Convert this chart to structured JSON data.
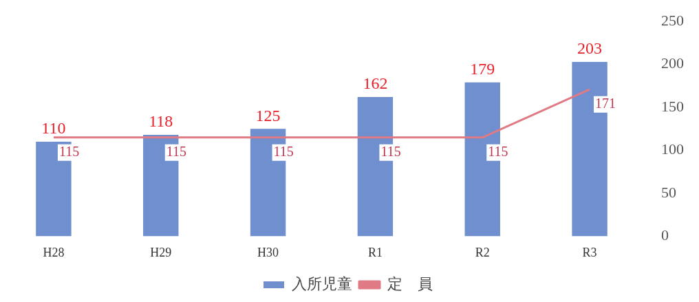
{
  "chart_data": {
    "type": "bar",
    "categories": [
      "H28",
      "H29",
      "H30",
      "R1",
      "R2",
      "R3"
    ],
    "series": [
      {
        "name": "入所児童",
        "color": "#6f8fcf",
        "values": [
          110,
          118,
          125,
          162,
          179,
          203
        ]
      },
      {
        "name": "定　員",
        "type": "line",
        "color": "#e07a84",
        "values": [
          115,
          115,
          115,
          115,
          115,
          171
        ]
      }
    ],
    "ylim": [
      0,
      250
    ],
    "yticks": [
      0,
      50,
      100,
      150,
      200,
      250
    ],
    "grid": false,
    "legend": "bottom",
    "marker": "none",
    "data_labels": true
  }
}
